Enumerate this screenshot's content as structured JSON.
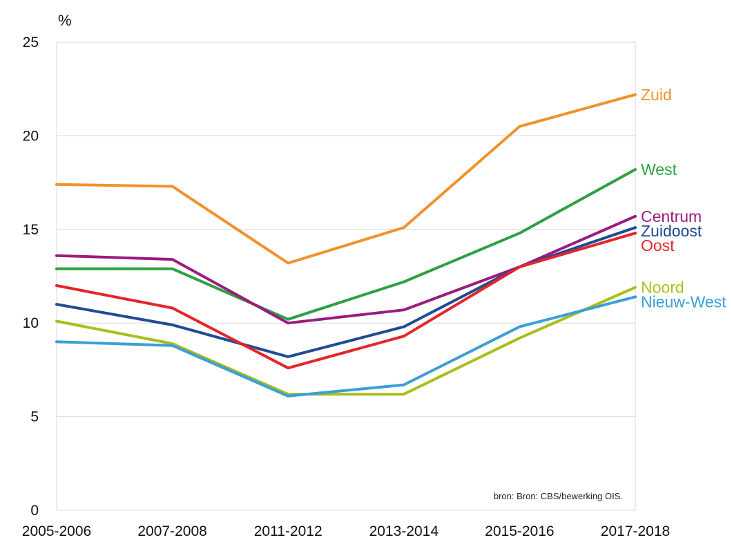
{
  "chart_data": {
    "type": "line",
    "title": "",
    "ylabel": "%",
    "xlabel": "",
    "categories": [
      "2005-2006",
      "2007-2008",
      "2011-2012",
      "2013-2014",
      "2015-2016",
      "2017-2018"
    ],
    "ylim": [
      0,
      25
    ],
    "yticks": [
      "0",
      "5",
      "10",
      "15",
      "20",
      "25"
    ],
    "grid": true,
    "source": "bron:  Bron: CBS/bewerking OIS.",
    "series": [
      {
        "name": "Zuid",
        "color": "#F0922B",
        "values": [
          17.4,
          17.3,
          13.2,
          15.1,
          20.5,
          22.2
        ]
      },
      {
        "name": "West",
        "color": "#2CA143",
        "values": [
          12.9,
          12.9,
          10.2,
          12.2,
          14.8,
          18.2
        ]
      },
      {
        "name": "Centrum",
        "color": "#9B1B7E",
        "values": [
          13.6,
          13.4,
          10.0,
          10.7,
          13.0,
          15.7
        ]
      },
      {
        "name": "Zuidoost",
        "color": "#1F4B94",
        "values": [
          11.0,
          9.9,
          8.2,
          9.8,
          13.0,
          15.1
        ]
      },
      {
        "name": "Oost",
        "color": "#E5252A",
        "values": [
          12.0,
          10.8,
          7.6,
          9.3,
          13.0,
          14.8
        ]
      },
      {
        "name": "Noord",
        "color": "#A7BF19",
        "values": [
          10.1,
          8.9,
          6.2,
          6.2,
          9.2,
          11.9
        ]
      },
      {
        "name": "Nieuw-West",
        "color": "#3A9FD8",
        "values": [
          9.0,
          8.8,
          6.1,
          6.7,
          9.8,
          11.4
        ]
      }
    ]
  }
}
